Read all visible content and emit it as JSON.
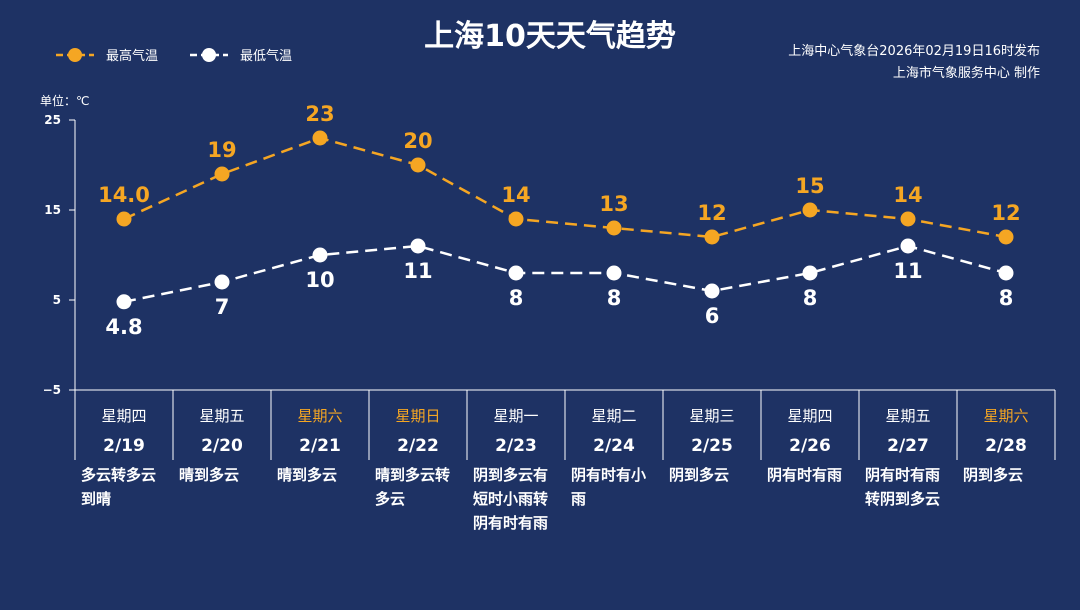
{
  "title": "上海10天天气趋势",
  "legend": {
    "high": "最高气温",
    "low": "最低气温"
  },
  "source": {
    "line1": "上海中心气象台2026年02月19日16时发布",
    "line2": "上海市气象服务中心  制作"
  },
  "unit_label": "单位：℃",
  "colors": {
    "background": "#1e3264",
    "high": "#f5a623",
    "low": "#ffffff",
    "weekend": "#f5a623",
    "grid": "#ffffff"
  },
  "chart_data": {
    "type": "line",
    "ylim": [
      -5,
      25
    ],
    "yticks": [
      25,
      15,
      5,
      -5
    ],
    "categories": [
      "2/19",
      "2/20",
      "2/21",
      "2/22",
      "2/23",
      "2/24",
      "2/25",
      "2/26",
      "2/27",
      "2/28"
    ],
    "weekdays": [
      "星期四",
      "星期五",
      "星期六",
      "星期日",
      "星期一",
      "星期二",
      "星期三",
      "星期四",
      "星期五",
      "星期六"
    ],
    "weekend": [
      false,
      false,
      true,
      true,
      false,
      false,
      false,
      false,
      false,
      true
    ],
    "weather": [
      [
        "多云转多云",
        "到晴"
      ],
      [
        "晴到多云"
      ],
      [
        "晴到多云"
      ],
      [
        "晴到多云转",
        "多云"
      ],
      [
        "阴到多云有",
        "短时小雨转",
        "阴有时有雨"
      ],
      [
        "阴有时有小",
        "雨"
      ],
      [
        "阴到多云"
      ],
      [
        "阴有时有雨"
      ],
      [
        "阴有时有雨",
        "转阴到多云"
      ],
      [
        "阴到多云"
      ]
    ],
    "series": [
      {
        "name": "最高气温",
        "values": [
          14.0,
          19,
          23,
          20,
          14,
          13,
          12,
          15,
          14,
          12
        ],
        "labels": [
          "14.0",
          "19",
          "23",
          "20",
          "14",
          "13",
          "12",
          "15",
          "14",
          "12"
        ]
      },
      {
        "name": "最低气温",
        "values": [
          4.8,
          7,
          10,
          11,
          8,
          8,
          6,
          8,
          11,
          8
        ],
        "labels": [
          "4.8",
          "7",
          "10",
          "11",
          "8",
          "8",
          "6",
          "8",
          "11",
          "8"
        ]
      }
    ]
  }
}
